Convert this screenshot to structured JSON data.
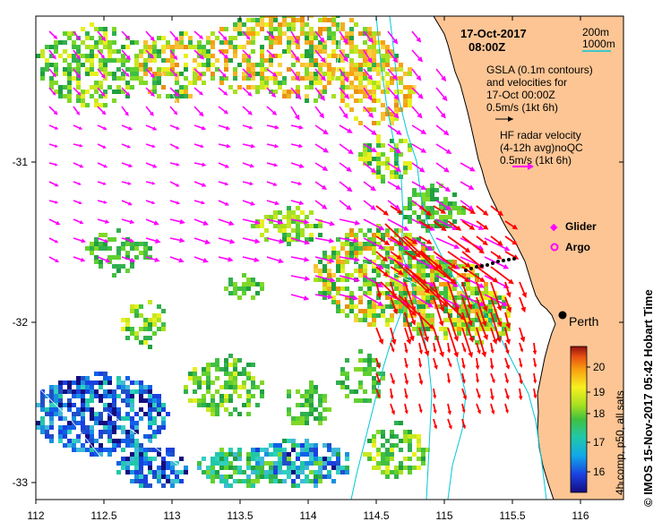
{
  "title": {
    "date": "17-Oct-2017",
    "time": "08:00Z"
  },
  "depth_legend": {
    "shallow": "200m",
    "deep": "1000m"
  },
  "gsla_legend": {
    "line1": "GSLA (0.1m contours)",
    "line2": "and velocities for",
    "line3": "17-Oct 00:00Z",
    "line4": "0.5m/s (1kt 6h)"
  },
  "hf_legend": {
    "line1": "HF radar velocity",
    "line2": "(4-12h avg)noQC",
    "line3": "0.5m/s (1kt 6h)"
  },
  "markers": {
    "glider": "Glider",
    "argo": "Argo"
  },
  "city": "Perth",
  "colorbar": {
    "label": "4h comp, p50, all sats",
    "ticks": [
      "16",
      "17",
      "18",
      "19",
      "20"
    ]
  },
  "credit": "© IMOS 15-Nov-2017 05:42 Hobart Time",
  "x_ticks": [
    "112",
    "112.5",
    "113",
    "113.5",
    "114",
    "114.5",
    "115",
    "115.5",
    "116"
  ],
  "y_ticks": [
    "-31",
    "-32",
    "-33"
  ],
  "colors": {
    "land": "#fdc594",
    "hf_arrow": "#ff00ff",
    "gsla_arrow": "#ff0000",
    "isobath": "#00c8d8"
  }
}
